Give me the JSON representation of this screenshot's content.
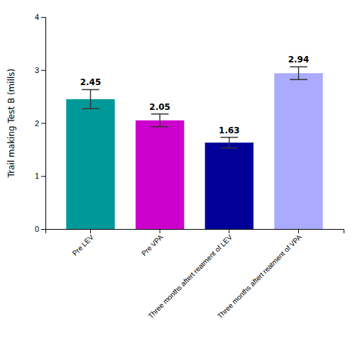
{
  "chart_data": {
    "type": "bar",
    "categories": [
      "Pre LEV",
      "Pre VPA",
      "Three months aftert reatment of LEV",
      "Three months aftert reatment of VPA"
    ],
    "values": [
      2.45,
      2.05,
      1.63,
      2.94
    ],
    "errors": [
      0.18,
      0.12,
      0.1,
      0.12
    ],
    "colors": [
      "#009999",
      "#CC00CC",
      "#000099",
      "#AAAAFF"
    ],
    "ylabel": "Trail making Test B (mills)",
    "ylim": [
      0,
      4
    ],
    "yticks": [
      0,
      1,
      2,
      3,
      4
    ],
    "data_labels": true
  }
}
